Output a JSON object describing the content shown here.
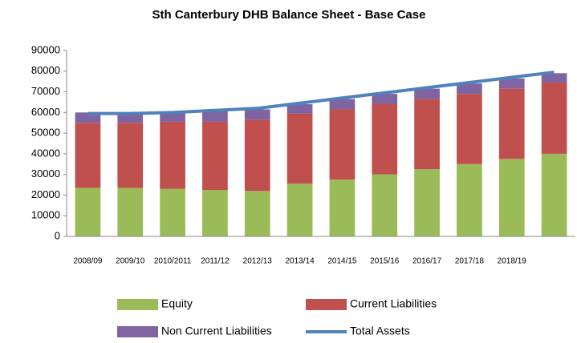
{
  "chart_data": {
    "type": "stacked_bar_line",
    "title": "Sth Canterbury DHB Balance Sheet - Base Case",
    "categories": [
      "2008/09",
      "2009/10",
      "2010/2011",
      "2011/12",
      "2012/13",
      "2013/14",
      "2014/15",
      "2015/16",
      "2016/17",
      "2017/18",
      "2018/19",
      null
    ],
    "series": [
      {
        "name": "Equity",
        "color": "#9bbb59",
        "values": [
          23500,
          23500,
          23000,
          22500,
          22000,
          25500,
          27500,
          30000,
          32500,
          35000,
          37500,
          40000
        ]
      },
      {
        "name": "Current Liabilities",
        "color": "#c0504d",
        "values": [
          31500,
          31500,
          32500,
          33000,
          34500,
          34000,
          34000,
          34000,
          34000,
          34000,
          34000,
          34500
        ]
      },
      {
        "name": "Non Current Liabilities",
        "color": "#8064a2",
        "values": [
          5000,
          5000,
          4500,
          5000,
          5000,
          4500,
          5000,
          5000,
          5000,
          5000,
          5000,
          4500
        ]
      },
      {
        "name": "Total Assets",
        "color": "#4f81bd",
        "type": "line",
        "values": [
          59500,
          59500,
          60000,
          61000,
          62000,
          64500,
          67000,
          69500,
          72000,
          74500,
          77000,
          79500
        ]
      }
    ],
    "ylim": [
      0,
      90000
    ],
    "yticks": [
      0,
      10000,
      20000,
      30000,
      40000,
      50000,
      60000,
      70000,
      80000,
      90000
    ],
    "grid": false
  }
}
